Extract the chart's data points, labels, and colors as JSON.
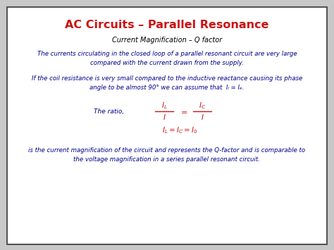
{
  "title": "AC Circuits – Parallel Resonance",
  "title_color": "#cc1111",
  "subtitle": "Current Magnification – Q factor",
  "subtitle_color": "#000000",
  "body_color": "#00008b",
  "formula_color": "#cc1111",
  "bg_color": "#c8c8c8",
  "slide_bg": "#ffffff",
  "border_color": "#555555",
  "para1": "The currents circulating in the closed loop of a parallel resonant circuit are very large\ncompared with the current drawn from the supply.",
  "para2": "If the coil resistance is very small compared to the inductive reactance causing its phase\nangle to be almost 90° we can assume that  Ⅰₗ = Ⅰₑ.",
  "para2_plain": "If the coil resistance is very small compared to the inductive reactance causing its phase\nangle to be almost 90° we can assume that  ",
  "ratio_label": "The ratio,",
  "para3": "is the current magnification of the circuit and represents the Q-factor and is comparable to\nthe voltage magnification in a series parallel resonant circuit."
}
